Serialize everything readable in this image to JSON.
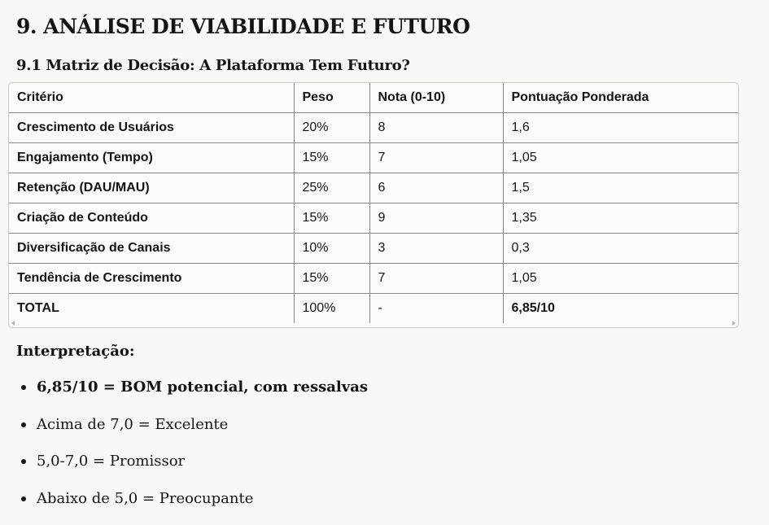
{
  "section_title": "9. ANÁLISE DE VIABILIDADE E FUTURO",
  "subsection_title": "9.1 Matriz de Decisão: A Plataforma Tem Futuro?",
  "table": {
    "headers": [
      "Critério",
      "Peso",
      "Nota (0-10)",
      "Pontuação Ponderada"
    ],
    "rows": [
      [
        "Crescimento de Usuários",
        "20%",
        "8",
        "1,6"
      ],
      [
        "Engajamento (Tempo)",
        "15%",
        "7",
        "1,05"
      ],
      [
        "Retenção (DAU/MAU)",
        "25%",
        "6",
        "1,5"
      ],
      [
        "Criação de Conteúdo",
        "15%",
        "9",
        "1,35"
      ],
      [
        "Diversificação de Canais",
        "10%",
        "3",
        "0,3"
      ],
      [
        "Tendência de Crescimento",
        "15%",
        "7",
        "1,05"
      ]
    ],
    "total": [
      "TOTAL",
      "100%",
      "-",
      "6,85/10"
    ]
  },
  "interpretation": {
    "label": "Interpretação:",
    "items": [
      "6,85/10 = BOM potencial, com ressalvas",
      "Acima de 7,0 = Excelente",
      "5,0-7,0 = Promissor",
      "Abaixo de 5,0 = Preocupante"
    ]
  }
}
